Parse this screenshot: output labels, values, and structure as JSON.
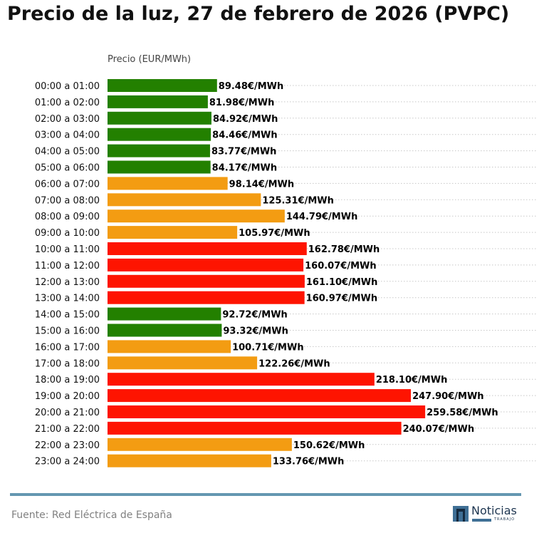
{
  "title": "Precio de la luz, 27 de febrero de 2026 (PVPC)",
  "source": "Fuente: Red Eléctrica de España",
  "logo": {
    "word": "Noticias",
    "sub": "TRABAJO"
  },
  "colors": {
    "low": "#238000",
    "mid": "#f39c12",
    "high": "#fe1401",
    "footer_line": "#6497b1",
    "grid": "#c8c8c8"
  },
  "chart_data": {
    "type": "bar",
    "orientation": "horizontal",
    "title": "Precio de la luz, 27 de febrero de 2026 (PVPC)",
    "xlabel": "Precio (EUR/MWh)",
    "ylabel": "",
    "xlim": [
      0,
      270
    ],
    "grid": "horizontal dotted",
    "value_suffix": "€/MWh",
    "categories": [
      "00:00 a 01:00",
      "01:00 a 02:00",
      "02:00 a 03:00",
      "03:00 a 04:00",
      "04:00 a 05:00",
      "05:00 a 06:00",
      "06:00 a 07:00",
      "07:00 a 08:00",
      "08:00 a 09:00",
      "09:00 a 10:00",
      "10:00 a 11:00",
      "11:00 a 12:00",
      "12:00 a 13:00",
      "13:00 a 14:00",
      "14:00 a 15:00",
      "15:00 a 16:00",
      "16:00 a 17:00",
      "17:00 a 18:00",
      "18:00 a 19:00",
      "19:00 a 20:00",
      "20:00 a 21:00",
      "21:00 a 22:00",
      "22:00 a 23:00",
      "23:00 a 24:00"
    ],
    "values": [
      89.48,
      81.98,
      84.92,
      84.46,
      83.77,
      84.17,
      98.14,
      125.31,
      144.79,
      105.97,
      162.78,
      160.07,
      161.1,
      160.97,
      92.72,
      93.32,
      100.71,
      122.26,
      218.1,
      247.9,
      259.58,
      240.07,
      150.62,
      133.76
    ],
    "levels": [
      "low",
      "low",
      "low",
      "low",
      "low",
      "low",
      "mid",
      "mid",
      "mid",
      "mid",
      "high",
      "high",
      "high",
      "high",
      "low",
      "low",
      "mid",
      "mid",
      "high",
      "high",
      "high",
      "high",
      "mid",
      "mid"
    ]
  }
}
